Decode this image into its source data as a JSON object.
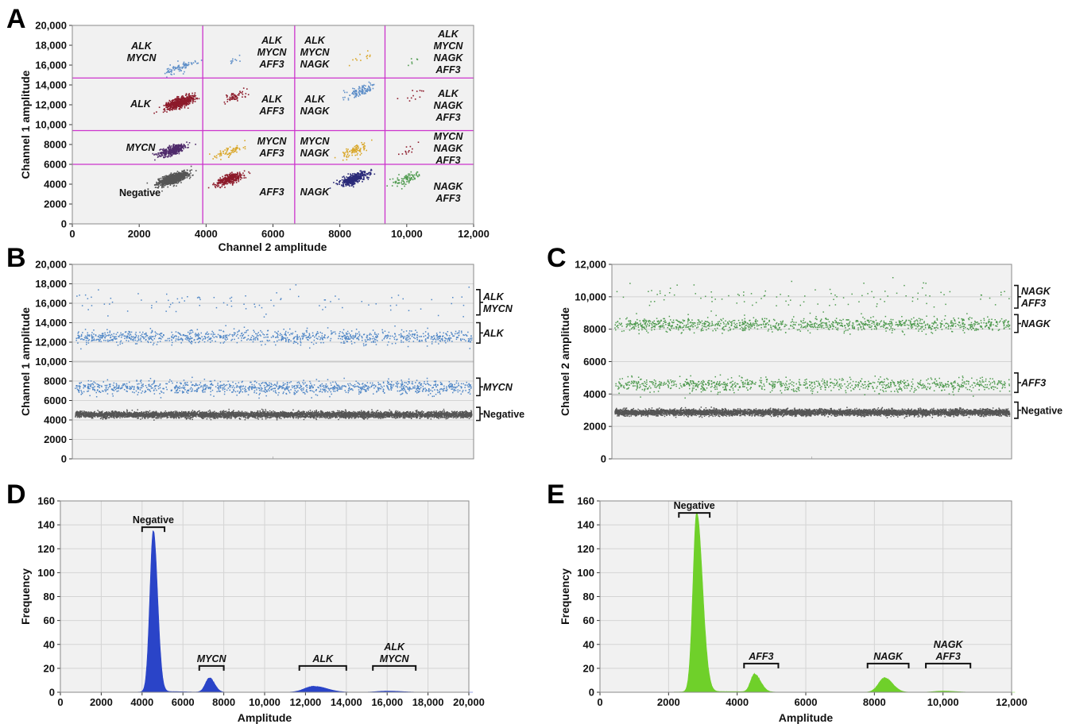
{
  "colors": {
    "background": "#f1f1f1",
    "grid": "#d4d4d4",
    "threshold": "#cc33cc",
    "negative": "#555555",
    "alk": "#8c1a2a",
    "mycn": "#4e2a6a",
    "alk_mycn": "#5f8fc8",
    "aff3": "#d9a72a",
    "nagk": "#2a2a78",
    "channel1_droplets": "#4f86c6",
    "channel2_droplets": "#4f9a4f",
    "hist_channel1": "#2a44c8",
    "hist_channel2": "#6fd02a"
  },
  "chart_data": [
    {
      "panel": "A",
      "type": "scatter",
      "xlabel": "Channel 2 amplitude",
      "ylabel": "Channel 1 amplitude",
      "xlim": [
        0,
        12000
      ],
      "ylim": [
        0,
        20000
      ],
      "xticks": [
        0,
        2000,
        4000,
        6000,
        8000,
        10000,
        12000
      ],
      "xtick_labels": [
        "0",
        "2000",
        "4000",
        "6000",
        "8000",
        "10,000",
        "12,000"
      ],
      "yticks": [
        0,
        2000,
        4000,
        6000,
        8000,
        10000,
        12000,
        14000,
        16000,
        18000,
        20000
      ],
      "ytick_labels": [
        "0",
        "2000",
        "4000",
        "6000",
        "8000",
        "10,000",
        "12,000",
        "14,000",
        "16,000",
        "18,000",
        "20,000"
      ],
      "thresholds_x": [
        3900,
        6650,
        9350
      ],
      "thresholds_y": [
        6000,
        9400,
        14700
      ],
      "clusters": [
        {
          "name": "Negative",
          "x": 3000,
          "y": 4600,
          "n": 900,
          "color_key": "negative"
        },
        {
          "name": "MYCN",
          "x": 3000,
          "y": 7500,
          "n": 350,
          "color_key": "mycn"
        },
        {
          "name": "ALK",
          "x": 3200,
          "y": 12300,
          "n": 600,
          "color_key": "alk"
        },
        {
          "name": "ALK MYCN",
          "x": 3200,
          "y": 15800,
          "n": 90,
          "color_key": "alk_mycn"
        },
        {
          "name": "AFF3",
          "x": 4700,
          "y": 4600,
          "n": 320,
          "color_key": "alk"
        },
        {
          "name": "MYCN AFF3",
          "x": 4700,
          "y": 7400,
          "n": 70,
          "color_key": "aff3"
        },
        {
          "name": "ALK AFF3",
          "x": 4800,
          "y": 12800,
          "n": 60,
          "color_key": "alk"
        },
        {
          "name": "ALK MYCN AFF3",
          "x": 4800,
          "y": 16400,
          "n": 10,
          "color_key": "alk_mycn"
        },
        {
          "name": "NAGK",
          "x": 8400,
          "y": 4600,
          "n": 420,
          "color_key": "nagk"
        },
        {
          "name": "MYCN NAGK",
          "x": 8400,
          "y": 7400,
          "n": 90,
          "color_key": "aff3"
        },
        {
          "name": "ALK NAGK",
          "x": 8600,
          "y": 13400,
          "n": 110,
          "color_key": "alk_mycn"
        },
        {
          "name": "ALK MYCN NAGK",
          "x": 8600,
          "y": 16800,
          "n": 12,
          "color_key": "aff3"
        },
        {
          "name": "NAGK AFF3",
          "x": 10000,
          "y": 4600,
          "n": 90,
          "color_key": "channel2_droplets"
        },
        {
          "name": "MYCN NAGK AFF3",
          "x": 10000,
          "y": 7400,
          "n": 12,
          "color_key": "alk"
        },
        {
          "name": "ALK NAGK AFF3",
          "x": 10200,
          "y": 13000,
          "n": 12,
          "color_key": "alk"
        },
        {
          "name": "ALK MYCN NAGK AFF3",
          "x": 10200,
          "y": 16500,
          "n": 6,
          "color_key": "channel2_droplets"
        }
      ]
    },
    {
      "panel": "B",
      "type": "scatter",
      "ylabel": "Channel 1 amplitude",
      "ylim": [
        0,
        20000
      ],
      "yticks": [
        0,
        2000,
        4000,
        6000,
        8000,
        10000,
        12000,
        14000,
        16000,
        18000,
        20000
      ],
      "ytick_labels": [
        "0",
        "2000",
        "4000",
        "6000",
        "8000",
        "10,000",
        "12,000",
        "14,000",
        "16,000",
        "18,000",
        "20,000"
      ],
      "threshold_y": 10000,
      "bands": [
        {
          "name": "ALK MYCN",
          "y": 16000,
          "n": 90,
          "color_key": "channel1_droplets"
        },
        {
          "name": "ALK",
          "y": 12600,
          "n": 1000,
          "color_key": "channel1_droplets"
        },
        {
          "name": "MYCN",
          "y": 7400,
          "n": 1100,
          "color_key": "channel1_droplets"
        },
        {
          "name": "Negative",
          "y": 4600,
          "n": 5500,
          "color_key": "negative"
        }
      ],
      "labels": [
        "ALK MYCN",
        "ALK",
        "MYCN",
        "Negative"
      ]
    },
    {
      "panel": "C",
      "type": "scatter",
      "ylabel": "Channel 2 amplitude",
      "ylim": [
        0,
        12000
      ],
      "yticks": [
        0,
        2000,
        4000,
        6000,
        8000,
        10000,
        12000
      ],
      "ytick_labels": [
        "0",
        "2000",
        "4000",
        "6000",
        "8000",
        "10,000",
        "12,000"
      ],
      "threshold_y": 3950,
      "bands": [
        {
          "name": "NAGK AFF3",
          "y": 10000,
          "n": 110,
          "color_key": "channel2_droplets"
        },
        {
          "name": "NAGK",
          "y": 8300,
          "n": 1100,
          "color_key": "channel2_droplets"
        },
        {
          "name": "AFF3",
          "y": 4600,
          "n": 900,
          "color_key": "channel2_droplets"
        },
        {
          "name": "Negative",
          "y": 2900,
          "n": 5500,
          "color_key": "negative"
        }
      ],
      "labels": [
        "NAGK AFF3",
        "NAGK",
        "AFF3",
        "Negative"
      ]
    },
    {
      "panel": "D",
      "type": "area",
      "xlabel": "Amplitude",
      "ylabel": "Frequency",
      "xlim": [
        0,
        20000
      ],
      "ylim": [
        0,
        160
      ],
      "xticks": [
        0,
        2000,
        4000,
        6000,
        8000,
        10000,
        12000,
        14000,
        16000,
        18000,
        20000
      ],
      "xtick_labels": [
        "0",
        "2000",
        "4000",
        "6000",
        "8000",
        "10,000",
        "12,000",
        "14,000",
        "16,000",
        "18,000",
        "20,000"
      ],
      "yticks": [
        0,
        20,
        40,
        60,
        80,
        100,
        120,
        140,
        160
      ],
      "ytick_labels": [
        "0",
        "20",
        "40",
        "60",
        "80",
        "100",
        "120",
        "140",
        "160"
      ],
      "color_key": "hist_channel1",
      "peaks": [
        {
          "name": "Negative",
          "center": 4550,
          "height": 135,
          "sigma_left": 170,
          "sigma_right": 210
        },
        {
          "name": "MYCN",
          "center": 7300,
          "height": 12,
          "sigma_left": 200,
          "sigma_right": 250
        },
        {
          "name": "ALK",
          "center": 12400,
          "height": 5,
          "sigma_left": 450,
          "sigma_right": 650
        },
        {
          "name": "ALK MYCN",
          "center": 16000,
          "height": 1,
          "sigma_left": 500,
          "sigma_right": 700
        }
      ],
      "brackets": [
        {
          "label": "Negative",
          "x0": 4000,
          "x1": 5100,
          "y": 138
        },
        {
          "label": "MYCN",
          "x0": 6800,
          "x1": 8000,
          "y": 22
        },
        {
          "label": "ALK",
          "x0": 11700,
          "x1": 14000,
          "y": 22
        },
        {
          "label": "ALK MYCN",
          "x0": 15300,
          "x1": 17400,
          "y": 22
        }
      ]
    },
    {
      "panel": "E",
      "type": "area",
      "xlabel": "Amplitude",
      "ylabel": "Frequency",
      "xlim": [
        0,
        12000
      ],
      "ylim": [
        0,
        160
      ],
      "xticks": [
        0,
        2000,
        4000,
        6000,
        8000,
        10000,
        12000
      ],
      "xtick_labels": [
        "0",
        "2000",
        "4000",
        "6000",
        "8000",
        "10,000",
        "12,000"
      ],
      "yticks": [
        0,
        20,
        40,
        60,
        80,
        100,
        120,
        140,
        160
      ],
      "ytick_labels": [
        "0",
        "20",
        "40",
        "60",
        "80",
        "100",
        "120",
        "140",
        "160"
      ],
      "color_key": "hist_channel2",
      "peaks": [
        {
          "name": "Negative",
          "center": 2820,
          "height": 150,
          "sigma_left": 110,
          "sigma_right": 170
        },
        {
          "name": "AFF3",
          "center": 4500,
          "height": 15,
          "sigma_left": 110,
          "sigma_right": 180
        },
        {
          "name": "NAGK",
          "center": 8300,
          "height": 12,
          "sigma_left": 180,
          "sigma_right": 230
        },
        {
          "name": "NAGK AFF3",
          "center": 10000,
          "height": 1,
          "sigma_left": 250,
          "sigma_right": 350
        }
      ],
      "brackets": [
        {
          "label": "Negative",
          "x0": 2300,
          "x1": 3200,
          "y": 150
        },
        {
          "label": "AFF3",
          "x0": 4200,
          "x1": 5200,
          "y": 24
        },
        {
          "label": "NAGK",
          "x0": 7800,
          "x1": 9000,
          "y": 24
        },
        {
          "label": "NAGK AFF3",
          "x0": 9500,
          "x1": 10800,
          "y": 24
        }
      ]
    }
  ],
  "panel_labels": [
    "A",
    "B",
    "C",
    "D",
    "E"
  ],
  "cluster_labels": {
    "alk_mycn": [
      "ALK",
      "MYCN"
    ],
    "alk": [
      "ALK"
    ],
    "mycn": [
      "MYCN"
    ],
    "negative": [
      "Negative"
    ],
    "alk_mycn_aff3": [
      "ALK",
      "MYCN",
      "AFF3"
    ],
    "alk_aff3": [
      "ALK",
      "AFF3"
    ],
    "mycn_aff3": [
      "MYCN",
      "AFF3"
    ],
    "aff3": [
      "AFF3"
    ],
    "alk_mycn_nagk": [
      "ALK",
      "MYCN",
      "NAGK"
    ],
    "alk_nagk": [
      "ALK",
      "NAGK"
    ],
    "mycn_nagk": [
      "MYCN",
      "NAGK"
    ],
    "nagk": [
      "NAGK"
    ],
    "alk_mycn_nagk_aff3": [
      "ALK",
      "MYCN",
      "NAGK",
      "AFF3"
    ],
    "alk_nagk_aff3": [
      "ALK",
      "NAGK",
      "AFF3"
    ],
    "mycn_nagk_aff3": [
      "MYCN",
      "NAGK",
      "AFF3"
    ],
    "nagk_aff3": [
      "NAGK",
      "AFF3"
    ]
  }
}
